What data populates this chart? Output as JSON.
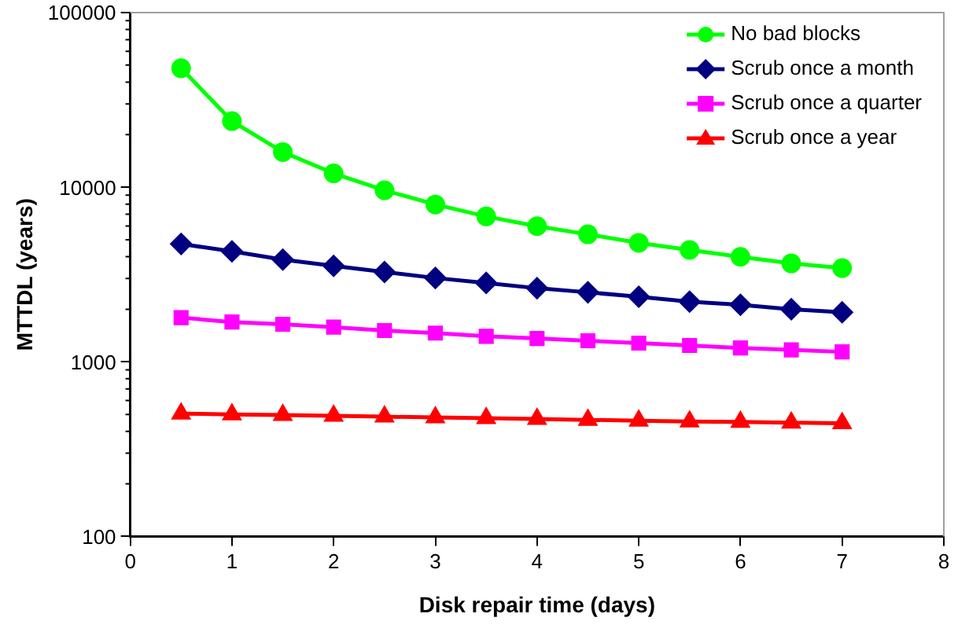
{
  "chart_data": {
    "type": "line",
    "xlabel": "Disk repair time (days)",
    "ylabel": "MTTDL (years)",
    "log": "y",
    "xlim": [
      0,
      8
    ],
    "xticks": [
      0,
      1,
      2,
      3,
      4,
      5,
      6,
      7,
      8
    ],
    "ylim": [
      100,
      100000
    ],
    "yticks": [
      100,
      1000,
      10000,
      100000
    ],
    "grid": false,
    "legend": "top right",
    "x": [
      0.5,
      1,
      1.5,
      2,
      2.5,
      3,
      3.5,
      4,
      4.5,
      5,
      5.5,
      6,
      6.5,
      7
    ],
    "series": [
      {
        "name": "No bad blocks",
        "color": "#00ff00",
        "marker": "circle",
        "values": [
          48000,
          23900,
          15900,
          12000,
          9600,
          7960,
          6800,
          5980,
          5370,
          4800,
          4370,
          3990,
          3660,
          3440
        ]
      },
      {
        "name": "Scrub once a month",
        "color": "#000080",
        "marker": "diamond",
        "values": [
          4730,
          4290,
          3850,
          3540,
          3270,
          3020,
          2830,
          2640,
          2500,
          2360,
          2210,
          2120,
          2000,
          1920
        ]
      },
      {
        "name": "Scrub once a quarter",
        "color": "#ff00ff",
        "marker": "square",
        "values": [
          1790,
          1690,
          1640,
          1580,
          1510,
          1460,
          1400,
          1360,
          1320,
          1280,
          1240,
          1200,
          1170,
          1140
        ]
      },
      {
        "name": "Scrub once a year",
        "color": "#ff0000",
        "marker": "triangle",
        "values": [
          505,
          500,
          495,
          490,
          485,
          480,
          475,
          470,
          465,
          460,
          455,
          452,
          448,
          444
        ]
      }
    ]
  }
}
